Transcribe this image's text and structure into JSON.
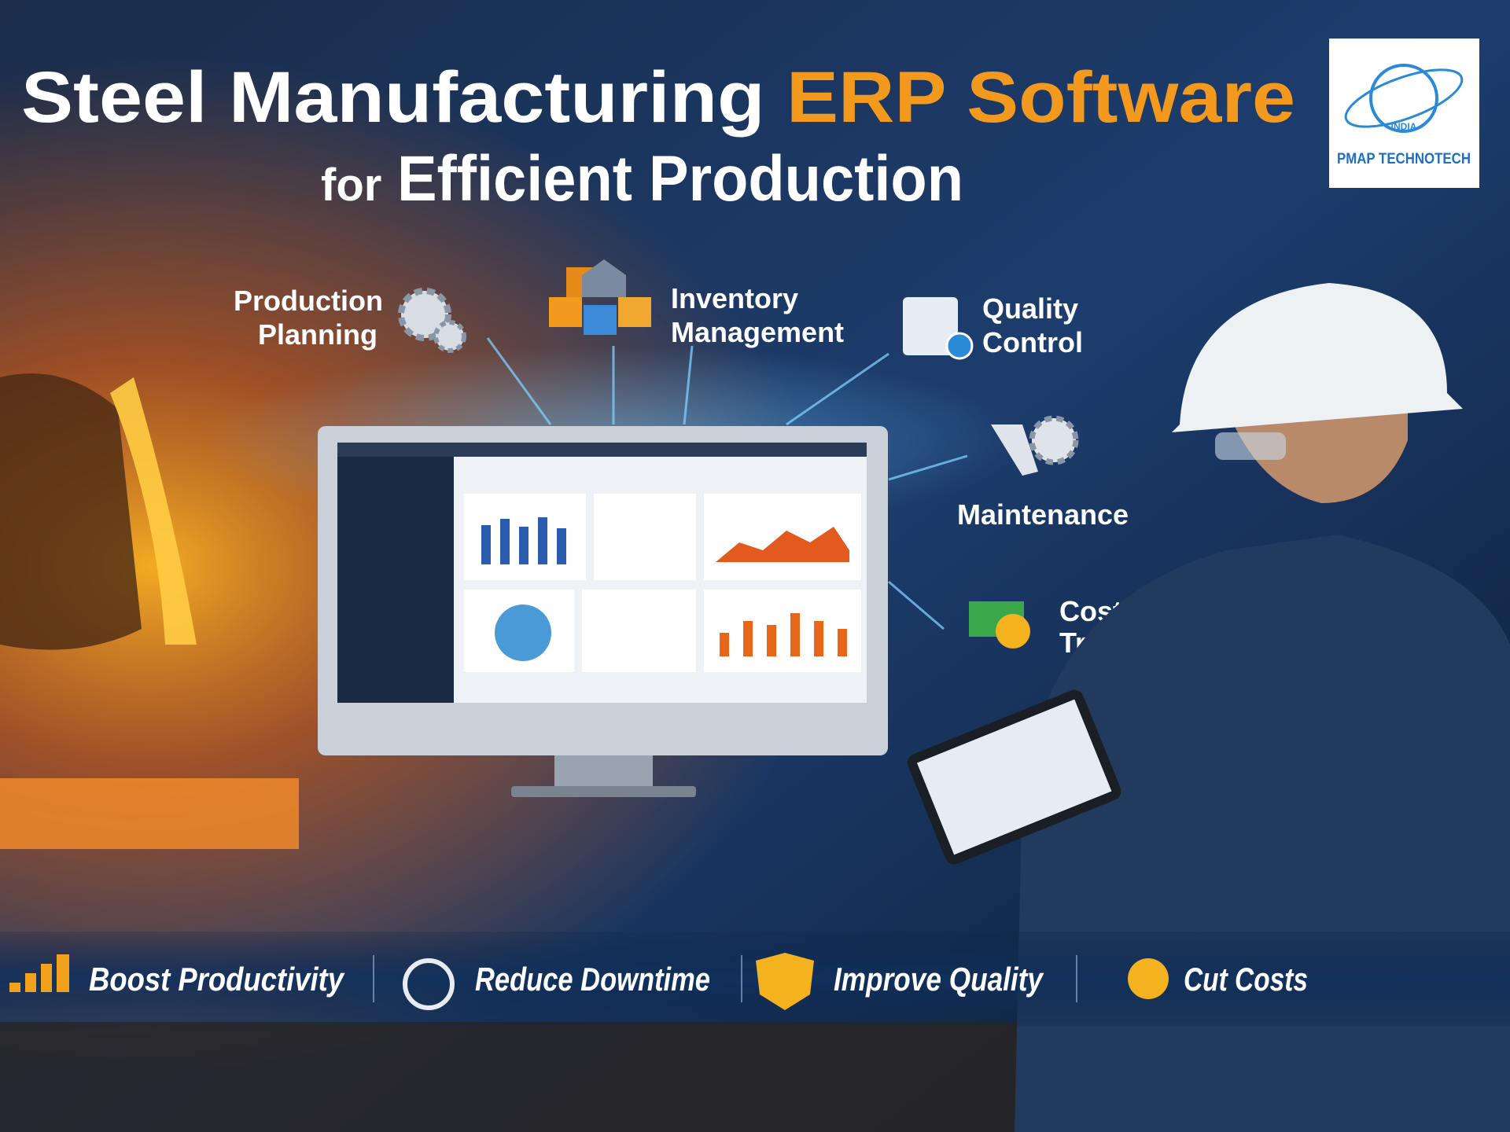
{
  "header": {
    "title_main": "Steel Manufacturing",
    "title_highlight": "ERP Software",
    "subtitle_prefix": "for",
    "subtitle_main": "Efficient Production"
  },
  "logo": {
    "country": "INDIA",
    "name": "PMAP TECHNOTECH"
  },
  "features": [
    {
      "label_lines": [
        "Production",
        "Planning"
      ]
    },
    {
      "label_lines": [
        "Inventory",
        "Management"
      ]
    },
    {
      "label_lines": [
        "Quality",
        "Control"
      ]
    },
    {
      "label_lines": [
        "Maintenance"
      ]
    },
    {
      "label_lines": [
        "Cost",
        "Tracking"
      ]
    }
  ],
  "benefits": [
    "Boost Productivity",
    "Reduce Downtime",
    "Improve Quality",
    "Cut Costs"
  ]
}
